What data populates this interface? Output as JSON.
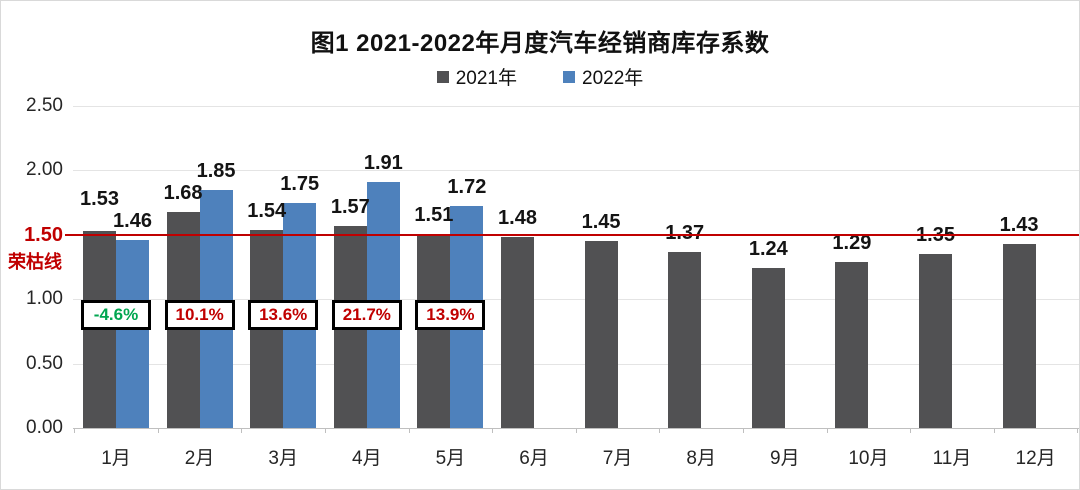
{
  "title": "图1  2021-2022年月度汽车经销商库存系数",
  "chart_data": {
    "type": "bar",
    "categories": [
      "1月",
      "2月",
      "3月",
      "4月",
      "5月",
      "6月",
      "7月",
      "8月",
      "9月",
      "10月",
      "11月",
      "12月"
    ],
    "series": [
      {
        "name": "2021年",
        "color": "#515153",
        "values": [
          1.53,
          1.68,
          1.54,
          1.57,
          1.51,
          1.48,
          1.45,
          1.37,
          1.24,
          1.29,
          1.35,
          1.43
        ]
      },
      {
        "name": "2022年",
        "color": "#4e81bc",
        "values": [
          1.46,
          1.85,
          1.75,
          1.91,
          1.72,
          null,
          null,
          null,
          null,
          null,
          null,
          null
        ]
      }
    ],
    "ylim": [
      0,
      2.5
    ],
    "yticks": [
      "0.00",
      "0.50",
      "1.00",
      "1.50",
      "2.00",
      "2.50"
    ],
    "grid": true,
    "legend_position": "top-center",
    "reference_line": {
      "value": 1.5,
      "label": "1.50",
      "sublabel": "荣枯线",
      "color": "#c00000"
    },
    "change_labels": [
      {
        "text": "-4.6%",
        "color": "#00a650"
      },
      {
        "text": "10.1%",
        "color": "#c00000"
      },
      {
        "text": "13.6%",
        "color": "#c00000"
      },
      {
        "text": "21.7%",
        "color": "#c00000"
      },
      {
        "text": "13.9%",
        "color": "#c00000"
      }
    ],
    "value_label_format": "0.00"
  }
}
